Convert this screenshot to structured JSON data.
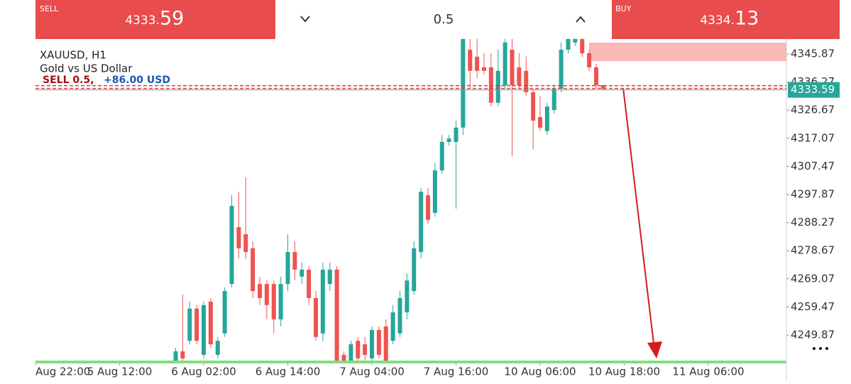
{
  "trade_bar": {
    "sell_label": "SELL",
    "sell_price_main": "4333.",
    "sell_price_fraction": "59",
    "volume": "0.5",
    "buy_label": "BUY",
    "buy_price_main": "4334.",
    "buy_price_fraction": "13"
  },
  "chart_data": {
    "type": "candlestick",
    "symbol": "XAUUSD, H1",
    "description": "Gold vs US Dollar",
    "position_label": "SELL 0.5,",
    "profit_label": "+86.00 USD",
    "current_price": {
      "value": 4333.59,
      "label": "4333.59"
    },
    "colors": {
      "up": "#26a69a",
      "down": "#ef5350"
    },
    "open": [
      4240.7,
      4244.3,
      4247.9,
      4258.9,
      4243.1,
      4261.3,
      4243.1,
      4250.4,
      4267.3,
      4286.7,
      4284.3,
      4279.5,
      4267.3,
      4267.3,
      4267.3,
      4255.2,
      4267.3,
      4278.2,
      4269.8,
      4272.2,
      4262.5,
      4250.4,
      4267.3,
      4272.2,
      4243.1,
      4240.7,
      4247.9,
      4246.7,
      4241.9,
      4251.6,
      4252.8,
      4247.9,
      4250.4,
      4257.6,
      4264.9,
      4278.2,
      4297.6,
      4291.6,
      4306.1,
      4315.8,
      4315.8,
      4320.7,
      4347.3,
      4344.9,
      4341.3,
      4341.3,
      4329.2,
      4335.2,
      4347.3,
      4341.3,
      4340.1,
      4332.8,
      4324.3,
      4319.5,
      4326.7,
      4334.0,
      4347.3,
      4349.8,
      4351.0,
      4346.1,
      4341.3,
      4335.2
    ],
    "high": [
      4245.5,
      4263.7,
      4261.3,
      4260.1,
      4261.3,
      4262.5,
      4249.2,
      4266.1,
      4297.6,
      4298.8,
      4303.7,
      4281.9,
      4269.8,
      4268.5,
      4268.5,
      4269.8,
      4284.3,
      4281.9,
      4274.6,
      4273.4,
      4264.9,
      4274.6,
      4274.6,
      4273.4,
      4244.3,
      4247.9,
      4249.2,
      4249.2,
      4252.8,
      4252.8,
      4255.2,
      4260.1,
      4264.9,
      4270.9,
      4281.9,
      4300.1,
      4300.1,
      4308.6,
      4318.2,
      4318.2,
      4323.1,
      4351.0,
      4351.0,
      4351.0,
      4346.1,
      4346.1,
      4347.3,
      4351.0,
      4351.0,
      4346.1,
      4345.0,
      4334.0,
      4331.5,
      4329.2,
      4335.2,
      4349.8,
      4351.0,
      4351.0,
      4351.0,
      4347.3,
      4342.5,
      4335.2
    ],
    "low": [
      4240.7,
      4240.7,
      4246.7,
      4246.7,
      4241.9,
      4245.5,
      4241.9,
      4249.2,
      4266.1,
      4276.0,
      4275.8,
      4262.5,
      4260.1,
      4255.2,
      4250.4,
      4252.8,
      4264.9,
      4268.5,
      4267.3,
      4260.1,
      4247.9,
      4247.9,
      4264.9,
      4240.7,
      4240.7,
      4240.7,
      4240.7,
      4240.7,
      4240.7,
      4241.9,
      4240.7,
      4246.7,
      4249.2,
      4255.2,
      4263.7,
      4276.0,
      4287.9,
      4290.3,
      4304.9,
      4314.6,
      4293.0,
      4318.2,
      4333.9,
      4337.6,
      4338.8,
      4327.9,
      4327.9,
      4334.0,
      4310.9,
      4334.0,
      4331.5,
      4313.4,
      4319.5,
      4318.2,
      4325.5,
      4332.8,
      4346.1,
      4348.6,
      4344.9,
      4340.1,
      4334.0,
      4333.4
    ],
    "close": [
      4244.3,
      4241.9,
      4258.9,
      4247.9,
      4260.1,
      4246.7,
      4247.9,
      4264.9,
      4294.0,
      4279.5,
      4278.2,
      4264.9,
      4262.5,
      4260.1,
      4255.2,
      4267.3,
      4278.2,
      4272.2,
      4272.2,
      4262.5,
      4249.2,
      4272.2,
      4272.2,
      4240.7,
      4240.7,
      4246.7,
      4241.9,
      4243.1,
      4251.6,
      4243.1,
      4240.7,
      4257.6,
      4262.5,
      4268.5,
      4279.5,
      4298.8,
      4289.2,
      4306.1,
      4315.8,
      4317.0,
      4320.7,
      4351.0,
      4340.1,
      4340.1,
      4340.1,
      4329.2,
      4340.1,
      4349.8,
      4335.2,
      4335.2,
      4332.8,
      4323.1,
      4320.7,
      4327.9,
      4334.0,
      4347.3,
      4351.0,
      4351.0,
      4346.1,
      4341.3,
      4335.2,
      4334.0
    ],
    "xlim": [
      -20,
      87.14
    ],
    "xticks": [
      {
        "value": -20,
        "label": "Aug 22:00"
      },
      {
        "value": -8,
        "label": "5 Aug 12:00"
      },
      {
        "value": 4,
        "label": "6 Aug 02:00"
      },
      {
        "value": 16,
        "label": "6 Aug 14:00"
      },
      {
        "value": 28,
        "label": "7 Aug 04:00"
      },
      {
        "value": 40,
        "label": "7 Aug 16:00"
      },
      {
        "value": 52,
        "label": "10 Aug 06:00"
      },
      {
        "value": 64,
        "label": "10 Aug 18:00"
      },
      {
        "value": 76,
        "label": "11 Aug 06:00"
      }
    ],
    "ylim": [
      4240.66,
      4350.96
    ],
    "yticks": [
      4345.87,
      4336.27,
      4326.67,
      4317.07,
      4307.47,
      4297.87,
      4288.27,
      4278.67,
      4269.07,
      4259.47,
      4249.87
    ]
  }
}
